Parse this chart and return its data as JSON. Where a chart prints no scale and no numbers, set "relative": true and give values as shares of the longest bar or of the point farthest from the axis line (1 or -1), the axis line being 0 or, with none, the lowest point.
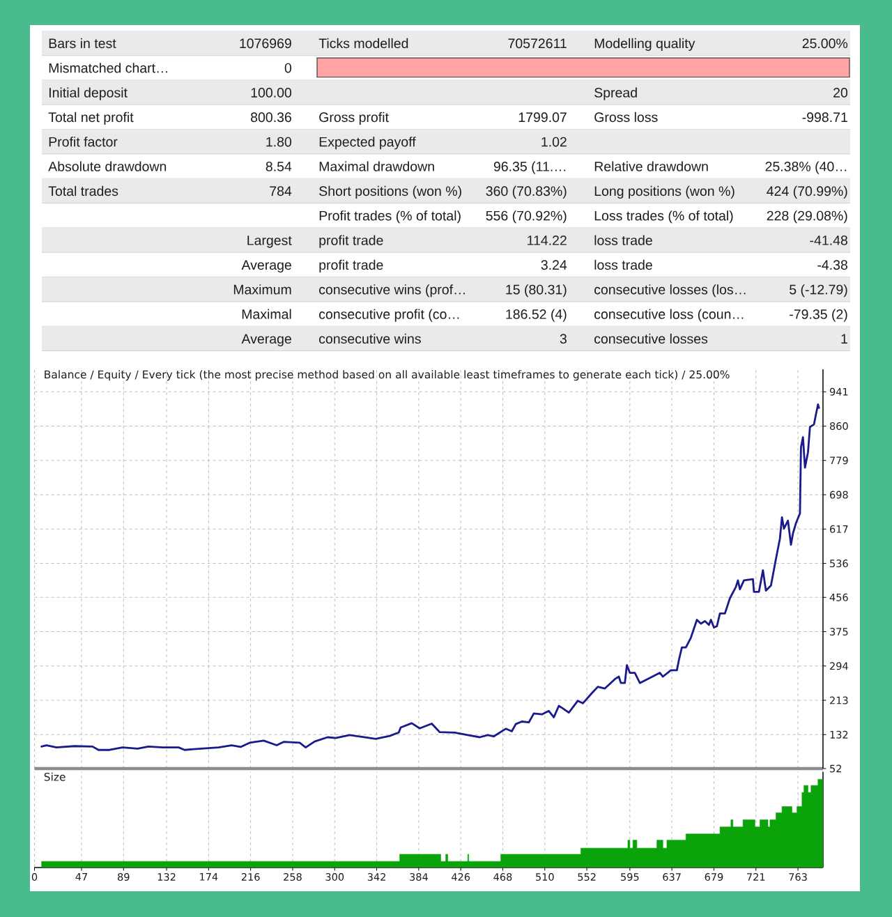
{
  "chart_data": [
    {
      "type": "other",
      "annotations": [
        "Bars in test",
        "1076969",
        "Ticks modelled",
        "70572611",
        "Modelling quality",
        "25.00%",
        "Mismatched chart…",
        "0",
        "Initial deposit",
        "100.00",
        "Spread",
        "20",
        "Total net profit",
        "800.36",
        "Gross profit",
        "1799.07",
        "Gross loss",
        "-998.71",
        "Profit factor",
        "1.80",
        "Expected payoff",
        "1.02",
        "Absolute drawdown",
        "8.54",
        "Maximal drawdown",
        "96.35 (11.…",
        "Relative drawdown",
        "25.38% (40…",
        "Total trades",
        "784",
        "Short positions (won %)",
        "360 (70.83%)",
        "Long positions (won %)",
        "424 (70.99%)",
        "Profit trades (% of total)",
        "556 (70.92%)",
        "Loss trades (% of total)",
        "228 (29.08%)",
        "Largest",
        "profit trade",
        "114.22",
        "loss trade",
        "-41.48",
        "Average",
        "profit trade",
        "3.24",
        "loss trade",
        "-4.38",
        "Maximum",
        "consecutive wins (prof…",
        "15 (80.31)",
        "consecutive losses (los…",
        "5 (-12.79)",
        "Maximal",
        "consecutive profit (co…",
        "186.52 (4)",
        "consecutive loss (coun…",
        "-79.35 (2)",
        "Average",
        "consecutive wins",
        "3",
        "consecutive losses",
        "1"
      ]
    },
    {
      "type": "line",
      "title": "Balance / Equity / Every tick (the most precise method based on all available least timeframes to generate each tick) / 25.00%",
      "color": "#1a1a8c",
      "x": [
        7,
        12,
        22,
        40,
        58,
        64,
        75,
        88,
        103,
        114,
        128,
        144,
        150,
        159,
        184,
        197,
        206,
        215,
        229,
        242,
        249,
        265,
        271,
        280,
        293,
        301,
        315,
        327,
        341,
        355,
        364,
        366,
        377,
        385,
        397,
        405,
        420,
        433,
        445,
        453,
        459,
        471,
        477,
        481,
        487,
        494,
        499,
        507,
        514,
        519,
        524,
        528,
        534,
        543,
        548,
        557,
        563,
        570,
        580,
        584,
        586,
        590,
        592,
        595,
        600,
        605,
        615,
        625,
        628,
        636,
        642,
        644,
        647,
        651,
        656,
        662,
        666,
        670,
        674,
        676,
        679,
        682,
        685,
        690,
        695,
        701,
        703,
        705,
        709,
        718,
        719,
        724,
        728,
        730,
        731,
        736,
        741,
        745,
        747,
        749,
        753,
        756,
        758,
        761,
        765,
        766,
        768,
        770,
        773,
        775,
        779,
        781,
        783,
        784
      ],
      "values": [
        104,
        107,
        102,
        105,
        104,
        96,
        96,
        102,
        99,
        104,
        102,
        102,
        96,
        98,
        102,
        107,
        103,
        113,
        118,
        107,
        115,
        113,
        102,
        116,
        126,
        124,
        131,
        127,
        122,
        129,
        137,
        149,
        159,
        147,
        158,
        138,
        137,
        131,
        126,
        131,
        128,
        146,
        140,
        157,
        163,
        161,
        182,
        180,
        188,
        173,
        200,
        194,
        184,
        212,
        206,
        230,
        245,
        241,
        263,
        269,
        254,
        254,
        296,
        278,
        278,
        254,
        266,
        278,
        269,
        284,
        284,
        308,
        338,
        338,
        361,
        403,
        394,
        400,
        391,
        403,
        385,
        388,
        418,
        418,
        454,
        481,
        496,
        475,
        496,
        499,
        469,
        469,
        520,
        487,
        472,
        484,
        547,
        595,
        645,
        618,
        637,
        580,
        607,
        631,
        654,
        810,
        834,
        762,
        798,
        858,
        864,
        888,
        911,
        903
      ],
      "xlim": [
        0,
        788
      ],
      "ylim": [
        52,
        994
      ],
      "xticks": [
        0,
        47,
        89,
        132,
        174,
        216,
        258,
        300,
        342,
        384,
        426,
        468,
        510,
        552,
        595,
        637,
        679,
        721,
        763
      ],
      "yticks": [
        52,
        132,
        213,
        294,
        375,
        456,
        536,
        617,
        698,
        779,
        860,
        941
      ],
      "grid": true,
      "tick_labels": "y"
    },
    {
      "type": "area",
      "title": "Size",
      "relative": true,
      "color": "#0aa30a",
      "x": [
        7,
        365,
        365,
        406,
        406,
        411,
        411,
        413,
        413,
        433,
        433,
        434,
        434,
        466,
        466,
        546,
        546,
        593,
        593,
        595,
        595,
        598,
        598,
        602,
        602,
        622,
        622,
        628,
        628,
        632,
        632,
        651,
        651,
        685,
        685,
        696,
        696,
        698,
        698,
        708,
        708,
        720,
        720,
        725,
        725,
        733,
        733,
        735,
        735,
        741,
        741,
        747,
        747,
        757,
        757,
        762,
        762,
        767,
        767,
        769,
        769,
        773,
        773,
        776,
        776,
        783,
        783,
        788
      ],
      "values": [
        0.07,
        0.07,
        0.15,
        0.15,
        0.07,
        0.07,
        0.15,
        0.15,
        0.07,
        0.07,
        0.15,
        0.15,
        0.07,
        0.07,
        0.15,
        0.15,
        0.22,
        0.22,
        0.31,
        0.31,
        0.22,
        0.22,
        0.31,
        0.31,
        0.22,
        0.22,
        0.31,
        0.31,
        0.22,
        0.22,
        0.31,
        0.31,
        0.38,
        0.38,
        0.46,
        0.46,
        0.54,
        0.54,
        0.46,
        0.46,
        0.54,
        0.54,
        0.46,
        0.46,
        0.54,
        0.54,
        0.46,
        0.46,
        0.54,
        0.54,
        0.62,
        0.62,
        0.69,
        0.69,
        0.62,
        0.62,
        0.69,
        0.69,
        0.85,
        0.85,
        0.93,
        0.93,
        0.85,
        0.85,
        0.93,
        0.93,
        1,
        1
      ],
      "xlim": [
        0,
        788
      ],
      "xticks": [
        0,
        47,
        89,
        132,
        174,
        216,
        258,
        300,
        342,
        384,
        426,
        468,
        510,
        552,
        595,
        637,
        679,
        721,
        763
      ],
      "grid": "x",
      "tick_labels": "x"
    }
  ]
}
